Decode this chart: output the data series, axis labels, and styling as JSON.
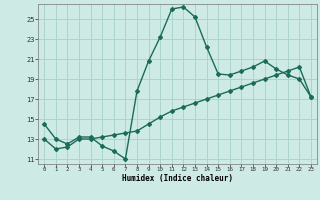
{
  "xlabel": "Humidex (Indice chaleur)",
  "bg_color": "#ceeae4",
  "grid_color": "#aad4cc",
  "line_color": "#1a6b5a",
  "xlim": [
    -0.5,
    23.5
  ],
  "ylim": [
    10.5,
    26.5
  ],
  "xticks": [
    0,
    1,
    2,
    3,
    4,
    5,
    6,
    7,
    8,
    9,
    10,
    11,
    12,
    13,
    14,
    15,
    16,
    17,
    18,
    19,
    20,
    21,
    22,
    23
  ],
  "yticks": [
    11,
    13,
    15,
    17,
    19,
    21,
    23,
    25
  ],
  "curve1_x": [
    0,
    1,
    2,
    3,
    4,
    5,
    6,
    7,
    8,
    9,
    10,
    11,
    12,
    13,
    14,
    15,
    16,
    17,
    18,
    19,
    20,
    21,
    22,
    23
  ],
  "curve1_y": [
    14.5,
    13.0,
    12.5,
    13.2,
    13.2,
    12.3,
    11.8,
    11.0,
    17.8,
    20.8,
    23.2,
    26.0,
    26.2,
    25.2,
    22.2,
    19.5,
    19.4,
    19.8,
    20.2,
    20.8,
    20.0,
    19.4,
    19.0,
    17.2
  ],
  "curve2_x": [
    0,
    1,
    2,
    3,
    4,
    5,
    6,
    7,
    8,
    9,
    10,
    11,
    12,
    13,
    14,
    15,
    16,
    17,
    18,
    19,
    20,
    21,
    22,
    23
  ],
  "curve2_y": [
    13.0,
    12.0,
    12.2,
    13.0,
    13.0,
    13.2,
    13.4,
    13.6,
    13.8,
    14.5,
    15.2,
    15.8,
    16.2,
    16.6,
    17.0,
    17.4,
    17.8,
    18.2,
    18.6,
    19.0,
    19.4,
    19.8,
    20.2,
    17.2
  ]
}
